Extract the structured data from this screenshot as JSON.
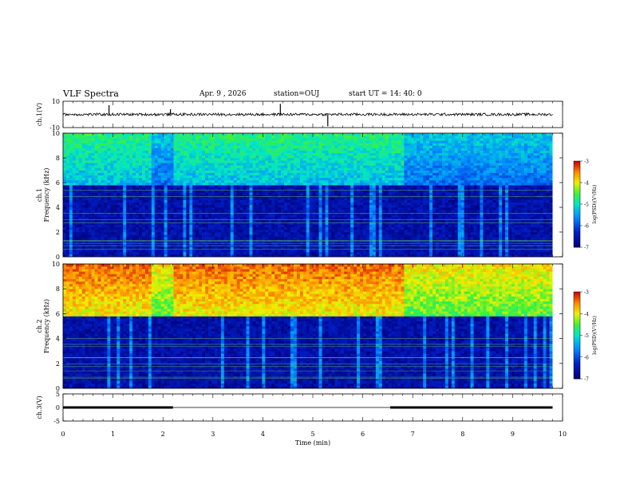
{
  "header": {
    "title": "VLF Spectra",
    "date": "Apr. 9 , 2026",
    "station": "station=OUJ",
    "start": "start UT = 14: 40: 0"
  },
  "chart_data": [
    {
      "type": "line",
      "panel": "ch1-voltage",
      "ylabel": "ch.1(V)",
      "ylim": [
        -10,
        10
      ],
      "yticks": [
        "10",
        "-10"
      ],
      "xlim": [
        0,
        10
      ],
      "series": [
        {
          "baseline": 0,
          "noise_amplitude": 2,
          "spikes": [
            {
              "x": 0.92,
              "y": 7
            },
            {
              "x": 2.15,
              "y": 4
            },
            {
              "x": 4.35,
              "y": 8
            },
            {
              "x": 5.3,
              "y": -9
            }
          ]
        }
      ]
    },
    {
      "type": "heatmap",
      "panel": "ch1-spectrogram",
      "ylabel": "ch.1\nFrequency (kHz)",
      "ylim": [
        0,
        10
      ],
      "yticks": [
        "0",
        "2",
        "4",
        "6",
        "8",
        "10"
      ],
      "xlim": [
        0,
        9.8
      ],
      "colorbar": {
        "label": "log(PSD)(V²/Hz)",
        "range": [
          -7,
          -3
        ],
        "ticks": [
          "-3",
          "-4",
          "-5",
          "-6",
          "-7"
        ]
      },
      "noise_band_khz": [
        5.8,
        10
      ],
      "noise_level": -5.3,
      "background_level": -6.6,
      "quiet_intervals_min": [
        [
          1.8,
          2.2
        ],
        [
          6.8,
          9.8
        ]
      ]
    },
    {
      "type": "heatmap",
      "panel": "ch2-spectrogram",
      "ylabel": "ch.2\nFrequency (kHz)",
      "ylim": [
        0,
        10
      ],
      "yticks": [
        "0",
        "2",
        "4",
        "6",
        "8",
        "10"
      ],
      "xlim": [
        0,
        9.8
      ],
      "colorbar": {
        "label": "log(PSD)(V²/Hz)",
        "range": [
          -7,
          -3
        ],
        "ticks": [
          "-3",
          "-4",
          "-5",
          "-6",
          "-7"
        ]
      },
      "noise_band_khz": [
        5.8,
        10
      ],
      "noise_level": -4.0,
      "background_level": -6.6,
      "quiet_intervals_min": [
        [
          1.8,
          2.2
        ],
        [
          6.8,
          9.8
        ]
      ]
    },
    {
      "type": "line",
      "panel": "ch3-voltage",
      "ylabel": "ch.3(V)",
      "ylim": [
        -5,
        5
      ],
      "yticks": [
        "5",
        "0",
        "-5"
      ],
      "xlim": [
        0,
        10
      ],
      "series": [
        {
          "segments": [
            {
              "x0": 0,
              "x1": 2.2,
              "y": 0
            },
            {
              "x0": 6.55,
              "x1": 9.8,
              "y": 0
            }
          ],
          "thin_value": 0
        }
      ]
    }
  ],
  "xaxis": {
    "label": "Time (min)",
    "ticks": [
      "0",
      "1",
      "2",
      "3",
      "4",
      "5",
      "6",
      "7",
      "8",
      "9",
      "10"
    ]
  }
}
